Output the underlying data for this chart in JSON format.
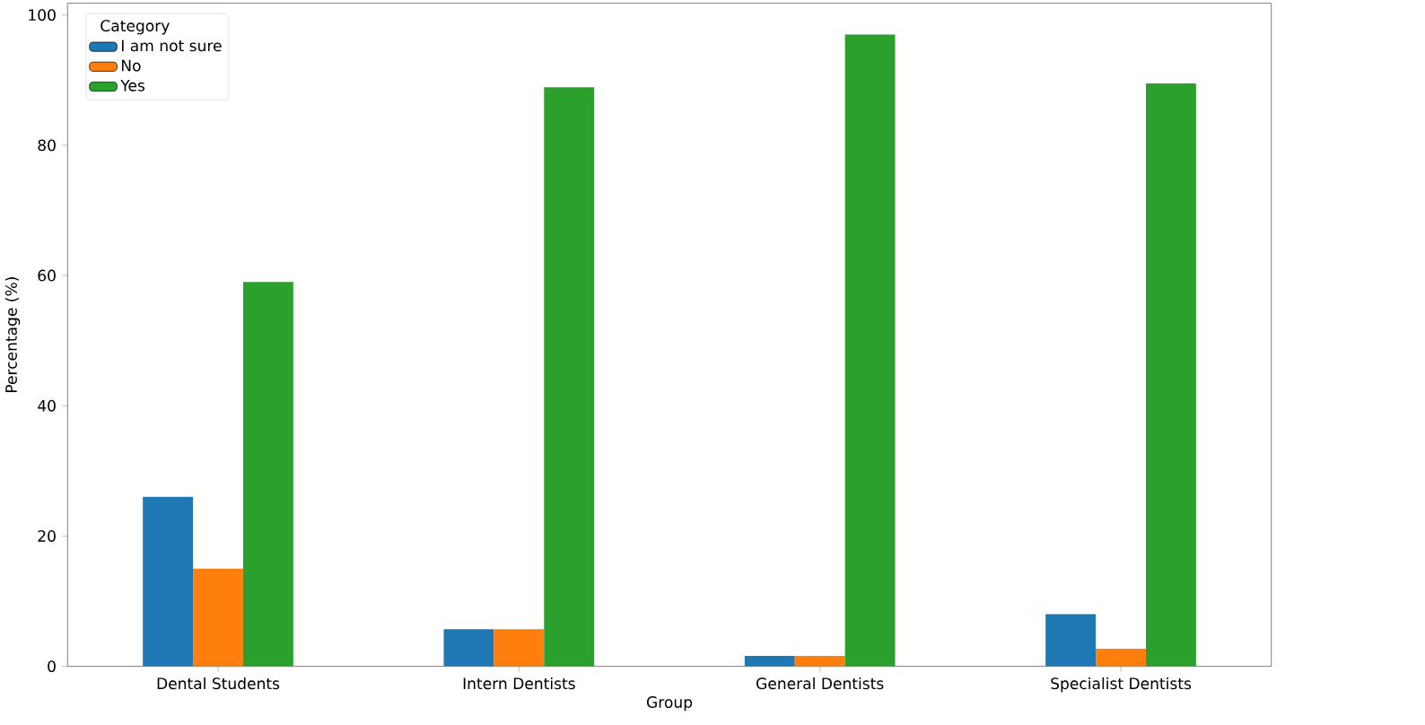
{
  "chart_data": {
    "type": "bar",
    "xlabel": "Group",
    "ylabel": "Percentage (%)",
    "legend_title": "Category",
    "categories": [
      "Dental Students",
      "Intern Dentists",
      "General Dentists",
      "Specialist Dentists"
    ],
    "series": [
      {
        "name": "I am not sure",
        "color": "#1f77b4",
        "values": [
          26,
          5.7,
          1.6,
          8.0
        ]
      },
      {
        "name": "No",
        "color": "#ff7f0e",
        "values": [
          15,
          5.7,
          1.6,
          2.7
        ]
      },
      {
        "name": "Yes",
        "color": "#2ca02c",
        "values": [
          59,
          88.9,
          97.0,
          89.5
        ]
      }
    ],
    "ylim": [
      0,
      101.8
    ],
    "yticks": [
      0,
      20,
      40,
      60,
      80,
      100
    ],
    "grid": false,
    "legend": "top left"
  }
}
